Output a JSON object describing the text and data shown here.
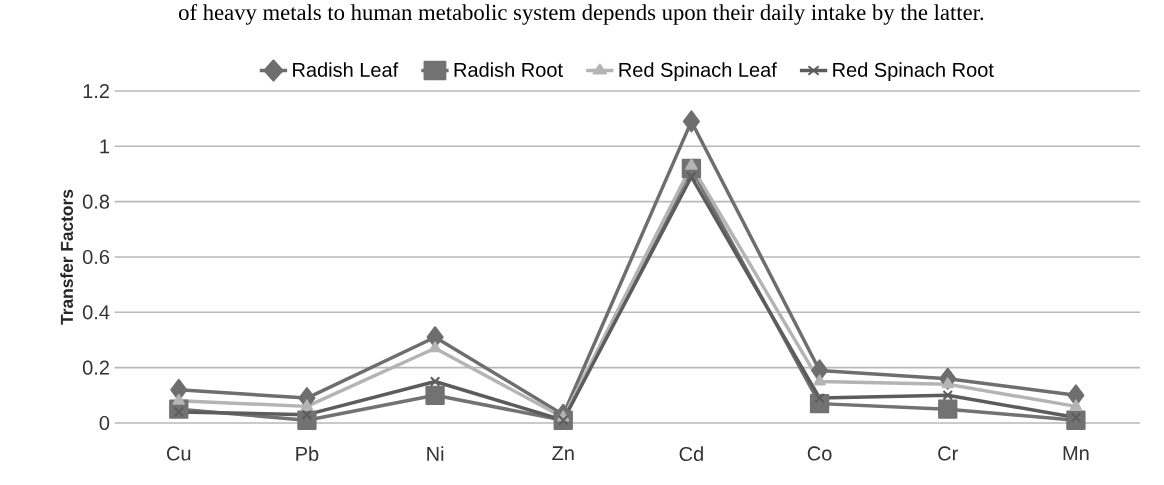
{
  "chart_data": {
    "type": "line",
    "ylabel": "Transfer Factors",
    "annotations": [
      "of heavy metals to human metabolic system depends upon their daily intake by the latter."
    ],
    "categories": [
      "Cu",
      "Pb",
      "Ni",
      "Zn",
      "Cd",
      "Co",
      "Cr",
      "Mn"
    ],
    "series": [
      {
        "name": "Radish Leaf",
        "color": "#6e6e6e",
        "marker": "diamond",
        "values": [
          0.12,
          0.09,
          0.31,
          0.03,
          1.09,
          0.19,
          0.16,
          0.1
        ]
      },
      {
        "name": "Radish Root",
        "color": "#727272",
        "marker": "square",
        "values": [
          0.05,
          0.01,
          0.1,
          0.01,
          0.92,
          0.07,
          0.05,
          0.01
        ]
      },
      {
        "name": "Red Spinach Leaf",
        "color": "#b4b4b4",
        "marker": "triangle",
        "values": [
          0.08,
          0.06,
          0.27,
          0.02,
          0.93,
          0.15,
          0.14,
          0.06
        ]
      },
      {
        "name": "Red Spinach Root",
        "color": "#5c5c5c",
        "marker": "cross",
        "values": [
          0.04,
          0.03,
          0.15,
          0.01,
          0.89,
          0.09,
          0.1,
          0.02
        ]
      }
    ],
    "ylim": [
      0,
      1.2
    ],
    "yticks": [
      0,
      0.2,
      0.4,
      0.6,
      0.8,
      1,
      1.2
    ],
    "grid": "y",
    "legend": "top",
    "line_style": "solid"
  }
}
